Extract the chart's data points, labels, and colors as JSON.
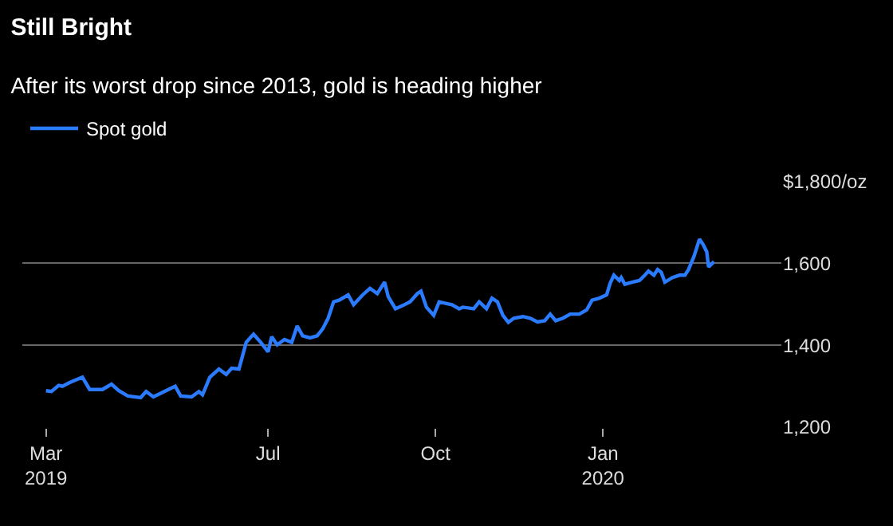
{
  "chart_data": {
    "type": "line",
    "title": "Still Bright",
    "subtitle": "After its worst drop since 2013, gold is heading higher",
    "x": [
      "2019-03-01",
      "2019-03-04",
      "2019-03-08",
      "2019-03-10",
      "2019-03-14",
      "2019-03-21",
      "2019-03-25",
      "2019-04-01",
      "2019-04-06",
      "2019-04-10",
      "2019-04-15",
      "2019-04-22",
      "2019-04-25",
      "2019-04-29",
      "2019-05-05",
      "2019-05-11",
      "2019-05-14",
      "2019-05-20",
      "2019-05-24",
      "2019-05-26",
      "2019-05-30",
      "2019-06-04",
      "2019-06-08",
      "2019-06-11",
      "2019-06-15",
      "2019-06-19",
      "2019-06-23",
      "2019-06-27",
      "2019-07-01",
      "2019-07-03",
      "2019-07-06",
      "2019-07-10",
      "2019-07-14",
      "2019-07-17",
      "2019-07-20",
      "2019-07-24",
      "2019-07-28",
      "2019-07-31",
      "2019-08-03",
      "2019-08-06",
      "2019-08-09",
      "2019-08-14",
      "2019-08-17",
      "2019-08-22",
      "2019-08-26",
      "2019-08-30",
      "2019-09-03",
      "2019-09-05",
      "2019-09-09",
      "2019-09-13",
      "2019-09-17",
      "2019-09-21",
      "2019-09-23",
      "2019-09-26",
      "2019-09-30",
      "2019-10-03",
      "2019-10-07",
      "2019-10-10",
      "2019-10-14",
      "2019-10-16",
      "2019-10-22",
      "2019-10-25",
      "2019-10-29",
      "2019-11-01",
      "2019-11-04",
      "2019-11-07",
      "2019-11-10",
      "2019-11-13",
      "2019-11-18",
      "2019-11-22",
      "2019-11-26",
      "2019-11-30",
      "2019-12-03",
      "2019-12-06",
      "2019-12-10",
      "2019-12-14",
      "2019-12-19",
      "2019-12-23",
      "2019-12-26",
      "2019-12-30",
      "2020-01-03",
      "2020-01-05",
      "2020-01-07",
      "2020-01-10",
      "2020-01-11",
      "2020-01-13",
      "2020-01-17",
      "2020-01-21",
      "2020-01-24",
      "2020-01-26",
      "2020-01-29",
      "2020-01-31",
      "2020-02-02",
      "2020-02-04",
      "2020-02-08",
      "2020-02-12",
      "2020-02-15",
      "2020-02-17",
      "2020-02-20",
      "2020-02-23",
      "2020-02-25",
      "2020-02-27",
      "2020-02-28",
      "2020-03-02"
    ],
    "series": [
      {
        "name": "Spot gold",
        "color": "#2b7bff",
        "values": [
          1289,
          1287,
          1302,
          1300,
          1309,
          1322,
          1292,
          1292,
          1305,
          1289,
          1276,
          1272,
          1287,
          1274,
          1287,
          1300,
          1276,
          1274,
          1287,
          1279,
          1322,
          1342,
          1329,
          1344,
          1342,
          1407,
          1427,
          1407,
          1384,
          1421,
          1401,
          1414,
          1407,
          1447,
          1423,
          1418,
          1423,
          1440,
          1466,
          1506,
          1510,
          1523,
          1499,
          1523,
          1539,
          1526,
          1554,
          1519,
          1489,
          1497,
          1506,
          1526,
          1532,
          1493,
          1473,
          1506,
          1502,
          1499,
          1489,
          1493,
          1489,
          1506,
          1489,
          1515,
          1506,
          1473,
          1456,
          1466,
          1470,
          1466,
          1457,
          1460,
          1476,
          1460,
          1466,
          1476,
          1476,
          1486,
          1510,
          1515,
          1523,
          1552,
          1571,
          1558,
          1565,
          1549,
          1554,
          1558,
          1571,
          1581,
          1571,
          1585,
          1578,
          1554,
          1565,
          1571,
          1571,
          1585,
          1617,
          1659,
          1646,
          1628,
          1591,
          1604
        ]
      }
    ],
    "xlim": [
      "2019-02-16",
      "2020-04-08"
    ],
    "xticks": [
      {
        "value": "2019-03-01",
        "label": "Mar\n2019"
      },
      {
        "value": "2019-07-01",
        "label": "Jul"
      },
      {
        "value": "2019-10-01",
        "label": "Oct"
      },
      {
        "value": "2020-01-01",
        "label": "Jan\n2020"
      }
    ],
    "ylim": [
      1200,
      1800
    ],
    "yticks": [
      {
        "value": 1200,
        "label": "1,200"
      },
      {
        "value": 1400,
        "label": "1,400"
      },
      {
        "value": 1600,
        "label": "1,600"
      },
      {
        "value": 1800,
        "label": "$1,800/oz"
      }
    ],
    "grid": "y",
    "legend": "top left",
    "marker": "none",
    "line_style": "solid"
  }
}
